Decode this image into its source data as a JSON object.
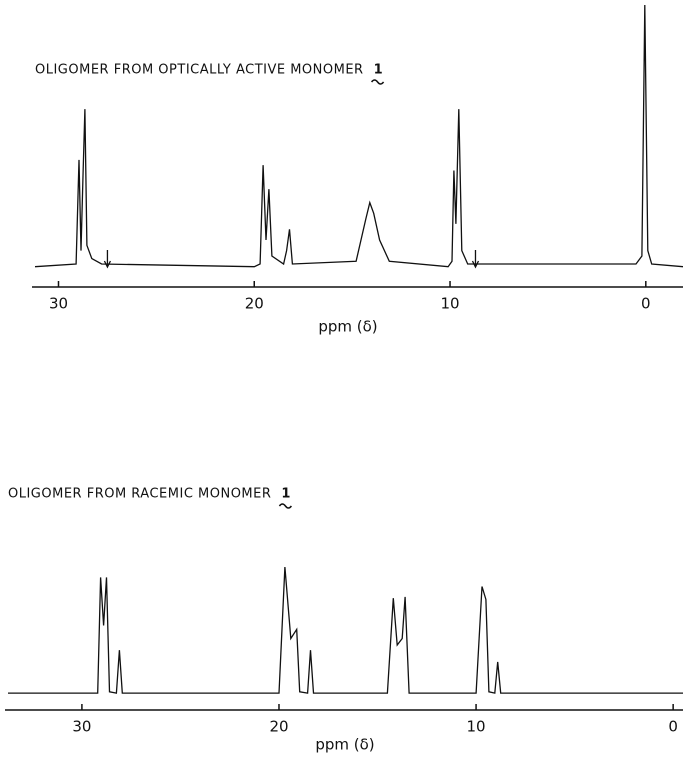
{
  "chart_data": [
    {
      "type": "line",
      "title": "OLIGOMER FROM OPTICALLY ACTIVE MONOMER",
      "compound": "1",
      "x_label": "ppm (δ)",
      "xlim": [
        31.2,
        -1.9
      ],
      "xticks": [
        30,
        20,
        10,
        0
      ],
      "ylim": [
        0,
        100
      ],
      "color": "#111111",
      "arrows": [
        27.5,
        8.7
      ],
      "x": [
        31.2,
        29.1,
        28.95,
        28.85,
        28.75,
        28.65,
        28.55,
        28.3,
        27.8,
        20,
        19.7,
        19.55,
        19.4,
        19.25,
        19.1,
        18.5,
        18.35,
        18.2,
        18.05,
        14.8,
        14.3,
        14.1,
        13.9,
        13.6,
        13.1,
        10.1,
        9.9,
        9.8,
        9.7,
        9.55,
        9.4,
        9.1,
        0.5,
        0.2,
        0.05,
        -0.1,
        -0.3,
        -1.9
      ],
      "values": [
        2,
        3,
        42,
        8,
        36,
        61,
        10,
        5,
        3,
        2,
        3,
        40,
        12,
        31,
        6,
        3,
        8,
        16,
        3,
        4,
        20,
        26,
        22,
        12,
        4,
        2,
        4,
        38,
        18,
        61,
        8,
        3,
        3,
        6,
        100,
        8,
        3,
        2
      ]
    },
    {
      "type": "line",
      "title": "OLIGOMER FROM RACEMIC MONOMER",
      "compound": "1",
      "x_label": "ppm (δ)",
      "xlim": [
        33.75,
        -0.5
      ],
      "xticks": [
        30,
        20,
        10,
        0
      ],
      "ylim": [
        0,
        100
      ],
      "color": "#111111",
      "x": [
        33.75,
        29.2,
        29.05,
        28.9,
        28.75,
        28.6,
        28.25,
        28.1,
        27.95,
        20.0,
        19.7,
        19.4,
        19.1,
        18.95,
        18.55,
        18.4,
        18.25,
        14.5,
        14.2,
        14.0,
        13.75,
        13.6,
        13.4,
        10.0,
        9.7,
        9.5,
        9.35,
        9.05,
        8.9,
        8.75,
        -0.5
      ],
      "values": [
        3,
        3,
        92,
        55,
        92,
        4,
        3,
        36,
        3,
        3,
        100,
        45,
        52,
        4,
        3,
        36,
        3,
        3,
        76,
        40,
        45,
        77,
        3,
        3,
        85,
        75,
        4,
        3,
        27,
        3,
        3
      ]
    }
  ]
}
